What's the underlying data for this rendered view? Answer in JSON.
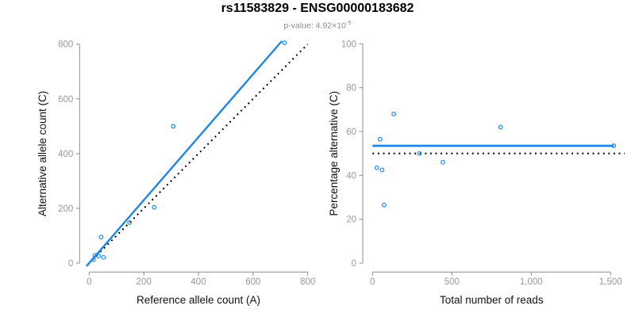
{
  "header": {
    "title": "rs11583829 - ENSG00000183682",
    "subtitle_base": "p-value: 4.92×10",
    "subtitle_exponent": "-5"
  },
  "colors": {
    "accent_blue": "#1E86E8",
    "dotted_black": "#000000",
    "axis_gray": "#8c8c8c",
    "tick_label_gray": "#999999",
    "axis_title_color": "#111111"
  },
  "chart_data": [
    {
      "type": "scatter",
      "name": "allele-counts-panel",
      "xlabel": "Reference allele count (A)",
      "ylabel": "Alternative allele count (C)",
      "xlim": [
        0,
        800
      ],
      "ylim": [
        0,
        800
      ],
      "grid": false,
      "xticks": {
        "values": [
          0,
          200,
          400,
          600,
          800
        ],
        "labels": [
          "0",
          "200",
          "400",
          "600",
          "800"
        ]
      },
      "yticks": {
        "values": [
          0,
          200,
          400,
          600,
          800
        ],
        "labels": [
          "0",
          "200",
          "400",
          "600",
          "800"
        ]
      },
      "points": [
        [
          16,
          12
        ],
        [
          21,
          28
        ],
        [
          35,
          26
        ],
        [
          53,
          21
        ],
        [
          44,
          95
        ],
        [
          148,
          148
        ],
        [
          238,
          204
        ],
        [
          308,
          500
        ],
        [
          715,
          805
        ]
      ],
      "point_color": "#1E86E8",
      "lines": [
        {
          "name": "identity-line",
          "style": "dotted",
          "color": "#000000",
          "x": [
            0,
            800
          ],
          "y": [
            0,
            800
          ]
        },
        {
          "name": "fit-line",
          "style": "solid",
          "color": "#1E86E8",
          "x": [
            -10,
            705
          ],
          "y": [
            -11.5,
            811
          ]
        }
      ]
    },
    {
      "type": "scatter",
      "name": "percentage-panel",
      "xlabel": "Total number of reads",
      "ylabel": "Percentage alternative (C)",
      "xlim": [
        0,
        1500
      ],
      "ylim": [
        0,
        100
      ],
      "grid": false,
      "xticks": {
        "values": [
          0,
          500,
          1000,
          1500
        ],
        "labels": [
          "0",
          "500",
          "1,000",
          "1,500"
        ]
      },
      "yticks": {
        "values": [
          0,
          20,
          40,
          60,
          80,
          100
        ],
        "labels": [
          "0",
          "20",
          "40",
          "60",
          "80",
          "100"
        ]
      },
      "points": [
        [
          27,
          43.5
        ],
        [
          48,
          56.5
        ],
        [
          60,
          42.5
        ],
        [
          73,
          26.5
        ],
        [
          134,
          68
        ],
        [
          295,
          50
        ],
        [
          443,
          46
        ],
        [
          807,
          62
        ],
        [
          1520,
          53.5
        ]
      ],
      "point_color": "#1E86E8",
      "lines": [
        {
          "name": "expected-50-line",
          "style": "dotted",
          "color": "#000000",
          "x": [
            0,
            1588
          ],
          "y": [
            50,
            50
          ]
        },
        {
          "name": "mean-line",
          "style": "solid",
          "color": "#1E86E8",
          "x": [
            0,
            1520
          ],
          "y": [
            53.5,
            53.5
          ]
        }
      ]
    }
  ]
}
